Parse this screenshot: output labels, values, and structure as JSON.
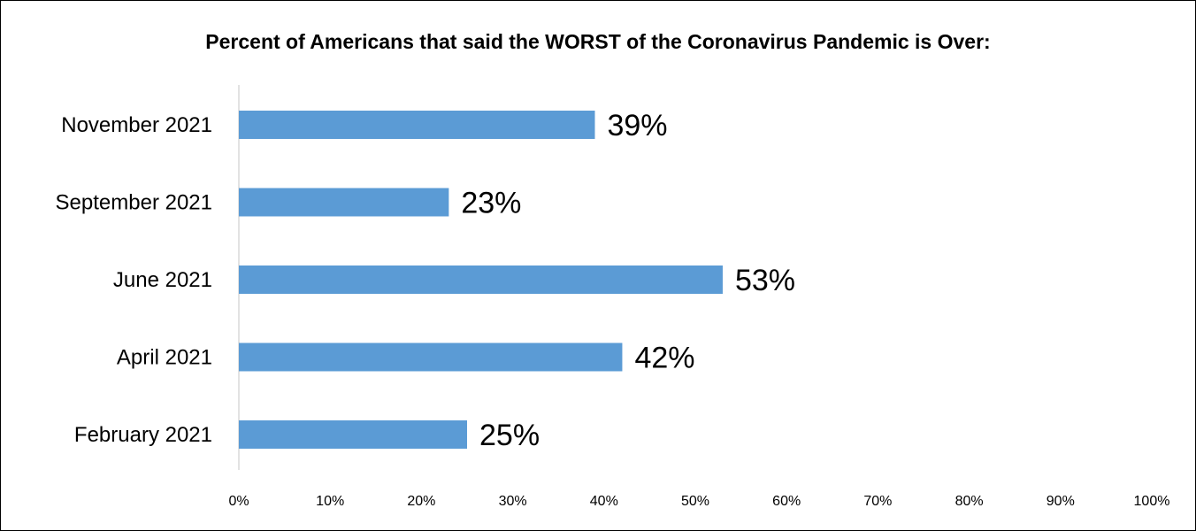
{
  "chart_data": {
    "type": "bar",
    "orientation": "horizontal",
    "title": "Percent of Americans that said the WORST of the Coronavirus Pandemic is Over:",
    "categories": [
      "November 2021",
      "September 2021",
      "June 2021",
      "April 2021",
      "February 2021"
    ],
    "values": [
      39,
      23,
      53,
      42,
      25
    ],
    "data_labels": [
      "39%",
      "23%",
      "53%",
      "42%",
      "25%"
    ],
    "xlim": [
      0,
      100
    ],
    "x_ticks": [
      "0%",
      "10%",
      "20%",
      "30%",
      "40%",
      "50%",
      "60%",
      "70%",
      "80%",
      "90%",
      "100%"
    ],
    "grid": false,
    "legend": "none",
    "bar_color": "#5B9BD5",
    "axis_color": "#D9D9D9"
  }
}
